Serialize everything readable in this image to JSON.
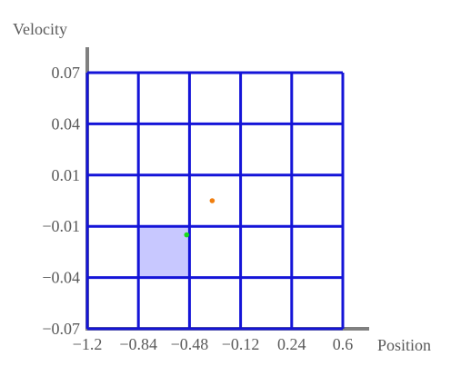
{
  "chart_data": {
    "type": "scatter",
    "title": "",
    "xlabel": "Position",
    "ylabel": "Velocity",
    "xlim": [
      -1.2,
      0.6
    ],
    "ylim": [
      -0.07,
      0.07
    ],
    "x_ticks": [
      -1.2,
      -0.84,
      -0.48,
      -0.12,
      0.24,
      0.6
    ],
    "x_tick_labels": [
      "−1.2",
      "−0.84",
      "−0.48",
      "−0.12",
      "0.24",
      "0.6"
    ],
    "y_ticks": [
      -0.07,
      -0.04,
      -0.01,
      0.01,
      0.04,
      0.07
    ],
    "y_tick_labels": [
      "−0.07",
      "−0.04",
      "−0.01",
      "0.01",
      "0.04",
      "0.07"
    ],
    "grid": true,
    "grid_color": "#1414d8",
    "highlighted_cell": {
      "x_range": [
        -0.84,
        -0.48
      ],
      "y_range": [
        -0.04,
        -0.01
      ],
      "color": "#c8c8ff"
    },
    "points": [
      {
        "x": -0.32,
        "y": 0.0,
        "color": "#f07f10"
      },
      {
        "x": -0.5,
        "y": -0.015,
        "color": "#1adc1a"
      }
    ]
  }
}
